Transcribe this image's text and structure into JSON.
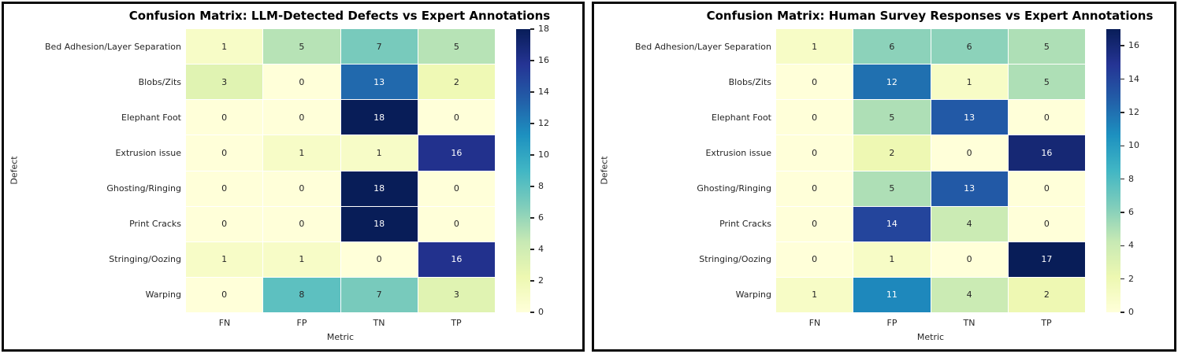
{
  "figure": {
    "description": "Two side-by-side confusion matrix heatmaps comparing detected 3D-printing defects against expert annotations"
  },
  "chart_data": [
    {
      "type": "heatmap",
      "title": "Confusion Matrix: LLM-Detected Defects vs Expert Annotations",
      "xlabel": "Metric",
      "ylabel": "Defect",
      "x_categories": [
        "FN",
        "FP",
        "TN",
        "TP"
      ],
      "y_categories": [
        "Bed Adhesion/Layer Separation",
        "Blobs/Zits",
        "Elephant Foot",
        "Extrusion issue",
        "Ghosting/Ringing",
        "Print Cracks",
        "Stringing/Oozing",
        "Warping"
      ],
      "values": [
        [
          1,
          5,
          7,
          5
        ],
        [
          3,
          0,
          13,
          2
        ],
        [
          0,
          0,
          18,
          0
        ],
        [
          0,
          1,
          1,
          16
        ],
        [
          0,
          0,
          18,
          0
        ],
        [
          0,
          0,
          18,
          0
        ],
        [
          1,
          1,
          0,
          16
        ],
        [
          0,
          8,
          7,
          3
        ]
      ],
      "vmin": 0,
      "vmax": 18,
      "colorbar_ticks": [
        0,
        2,
        4,
        6,
        8,
        10,
        12,
        14,
        16,
        18
      ],
      "colormap": "YlGnBu",
      "colors": {
        "cmap_low": "#ffffd9",
        "cmap_mid": "#41b6c4",
        "cmap_high": "#081d58",
        "frame": "#0a0a0a"
      },
      "legend_position": "right-colorbar",
      "grid": false
    },
    {
      "type": "heatmap",
      "title": "Confusion Matrix: Human Survey Responses vs Expert Annotations",
      "xlabel": "Metric",
      "ylabel": "Defect",
      "x_categories": [
        "FN",
        "FP",
        "TN",
        "TP"
      ],
      "y_categories": [
        "Bed Adhesion/Layer Separation",
        "Blobs/Zits",
        "Elephant Foot",
        "Extrusion issue",
        "Ghosting/Ringing",
        "Print Cracks",
        "Stringing/Oozing",
        "Warping"
      ],
      "values": [
        [
          1,
          6,
          6,
          5
        ],
        [
          0,
          12,
          1,
          5
        ],
        [
          0,
          5,
          13,
          0
        ],
        [
          0,
          2,
          0,
          16
        ],
        [
          0,
          5,
          13,
          0
        ],
        [
          0,
          14,
          4,
          0
        ],
        [
          0,
          1,
          0,
          17
        ],
        [
          1,
          11,
          4,
          2
        ]
      ],
      "vmin": 0,
      "vmax": 17,
      "colorbar_ticks": [
        0,
        2,
        4,
        6,
        8,
        10,
        12,
        14,
        16
      ],
      "colormap": "YlGnBu",
      "colors": {
        "cmap_low": "#ffffd9",
        "cmap_mid": "#41b6c4",
        "cmap_high": "#081d58",
        "frame": "#0a0a0a"
      },
      "legend_position": "right-colorbar",
      "grid": false
    }
  ]
}
